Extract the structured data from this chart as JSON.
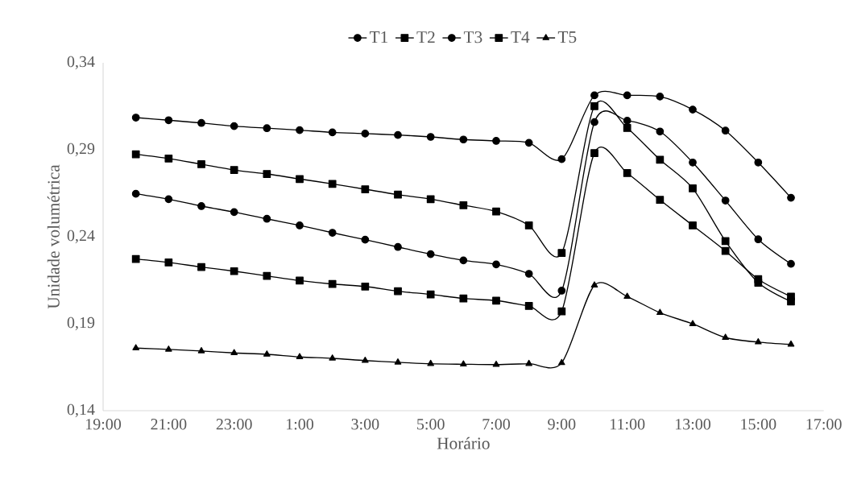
{
  "chart_data": {
    "type": "line",
    "xlabel": "Horário",
    "ylabel": "Unidade volumétrica",
    "x": [
      "2000-01-01T20:00",
      "2000-01-01T21:00",
      "2000-01-01T22:00",
      "2000-01-01T23:00",
      "2000-01-02T00:00",
      "2000-01-02T01:00",
      "2000-01-02T02:00",
      "2000-01-02T03:00",
      "2000-01-02T04:00",
      "2000-01-02T05:00",
      "2000-01-02T06:00",
      "2000-01-02T07:00",
      "2000-01-02T08:00",
      "2000-01-02T09:00",
      "2000-01-02T10:00",
      "2000-01-02T11:00",
      "2000-01-02T12:00",
      "2000-01-02T13:00",
      "2000-01-02T14:00",
      "2000-01-02T15:00",
      "2000-01-02T16:00"
    ],
    "xlim": [
      "2000-01-01T19:00",
      "2000-01-02T17:00"
    ],
    "xticks": [
      {
        "value": "2000-01-01T19:00",
        "label": "19:00"
      },
      {
        "value": "2000-01-01T21:00",
        "label": "21:00"
      },
      {
        "value": "2000-01-01T23:00",
        "label": "23:00"
      },
      {
        "value": "2000-01-02T01:00",
        "label": "1:00"
      },
      {
        "value": "2000-01-02T03:00",
        "label": "3:00"
      },
      {
        "value": "2000-01-02T05:00",
        "label": "5:00"
      },
      {
        "value": "2000-01-02T07:00",
        "label": "7:00"
      },
      {
        "value": "2000-01-02T09:00",
        "label": "9:00"
      },
      {
        "value": "2000-01-02T11:00",
        "label": "11:00"
      },
      {
        "value": "2000-01-02T13:00",
        "label": "13:00"
      },
      {
        "value": "2000-01-02T15:00",
        "label": "15:00"
      },
      {
        "value": "2000-01-02T17:00",
        "label": "17:00"
      }
    ],
    "ylim": [
      0.14,
      0.34
    ],
    "yticks": [
      {
        "value": 0.14,
        "label": "0,14"
      },
      {
        "value": 0.19,
        "label": "0,19"
      },
      {
        "value": 0.24,
        "label": "0,24"
      },
      {
        "value": 0.29,
        "label": "0,29"
      },
      {
        "value": 0.34,
        "label": "0,34"
      }
    ],
    "legend": "top",
    "grid": false,
    "line_style": "solid",
    "series": [
      {
        "name": "T1",
        "color": "#000000",
        "marker": "circle",
        "values": [
          0.3085,
          0.307,
          0.3054,
          0.3036,
          0.3024,
          0.3013,
          0.3,
          0.2993,
          0.2985,
          0.2974,
          0.2959,
          0.2951,
          0.294,
          0.2846,
          0.3213,
          0.3213,
          0.3206,
          0.3131,
          0.301,
          0.2827,
          0.2624
        ]
      },
      {
        "name": "T2",
        "color": "#000000",
        "marker": "square",
        "values": [
          0.2874,
          0.285,
          0.2817,
          0.2784,
          0.2761,
          0.2732,
          0.2704,
          0.2673,
          0.2642,
          0.2616,
          0.2581,
          0.2545,
          0.2465,
          0.2307,
          0.3151,
          0.3025,
          0.2843,
          0.2678,
          0.2375,
          0.2136,
          0.2028
        ]
      },
      {
        "name": "T3",
        "color": "#000000",
        "marker": "circle",
        "values": [
          0.2647,
          0.2616,
          0.2576,
          0.2542,
          0.2503,
          0.2465,
          0.2423,
          0.2383,
          0.2341,
          0.23,
          0.2264,
          0.2241,
          0.2187,
          0.209,
          0.3059,
          0.3067,
          0.3005,
          0.2827,
          0.2608,
          0.2385,
          0.2244
        ]
      },
      {
        "name": "T4",
        "color": "#000000",
        "marker": "square",
        "values": [
          0.2272,
          0.2252,
          0.2226,
          0.2202,
          0.2175,
          0.2148,
          0.2128,
          0.2114,
          0.2087,
          0.2068,
          0.2045,
          0.2033,
          0.2002,
          0.1971,
          0.2881,
          0.2766,
          0.2612,
          0.2465,
          0.2318,
          0.2156,
          0.2056
        ]
      },
      {
        "name": "T5",
        "color": "#000000",
        "marker": "triangle",
        "values": [
          0.176,
          0.1752,
          0.1743,
          0.1732,
          0.1724,
          0.1709,
          0.1701,
          0.1688,
          0.1678,
          0.167,
          0.1667,
          0.1665,
          0.167,
          0.1675,
          0.2121,
          0.2056,
          0.1963,
          0.1899,
          0.182,
          0.1794,
          0.1781
        ]
      }
    ]
  }
}
